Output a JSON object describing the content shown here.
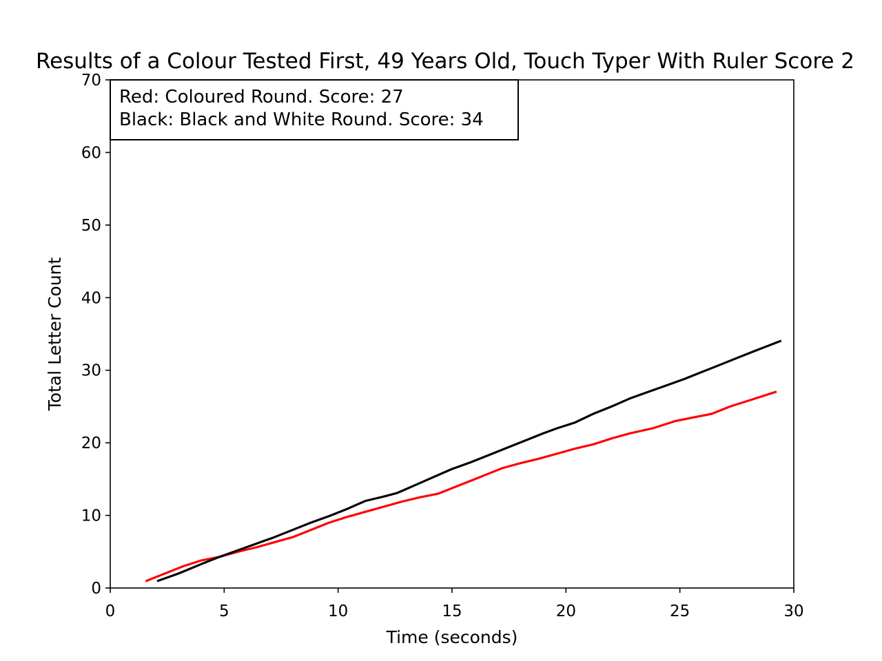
{
  "chart_data": {
    "type": "line",
    "title": "Results of a Colour Tested First, 49 Years Old, Touch Typer With Ruler Score 2",
    "xlabel": "Time (seconds)",
    "ylabel": "Total Letter Count",
    "xlim": [
      0,
      30
    ],
    "ylim": [
      0,
      70
    ],
    "xticks": [
      "0",
      "5",
      "10",
      "15",
      "20",
      "25",
      "30"
    ],
    "yticks": [
      "0",
      "10",
      "20",
      "30",
      "40",
      "50",
      "60",
      "70"
    ],
    "grid": false,
    "legend_box": {
      "placement": "top-left",
      "lines": [
        "Red: Coloured Round. Score: 27",
        "Black: Black and White Round. Score: 34"
      ]
    },
    "series": [
      {
        "color": "#ff0000",
        "x": [
          1.6,
          2.4,
          3.2,
          4.0,
          4.8,
          5.6,
          6.4,
          7.2,
          8.0,
          8.8,
          9.6,
          10.4,
          11.2,
          12.0,
          12.8,
          13.6,
          14.4,
          15.2,
          16.0,
          16.8,
          17.2,
          18.0,
          18.8,
          19.6,
          20.4,
          21.2,
          22.0,
          22.8,
          23.8,
          24.8,
          26.4,
          27.2,
          28.2,
          29.2
        ],
        "y": [
          1,
          2,
          3,
          3.8,
          4.3,
          5,
          5.6,
          6.3,
          7,
          8,
          9,
          9.8,
          10.5,
          11.2,
          11.9,
          12.5,
          13,
          14,
          15,
          16,
          16.5,
          17.2,
          17.8,
          18.5,
          19.2,
          19.8,
          20.6,
          21.3,
          22,
          23,
          24,
          25,
          26,
          27
        ]
      },
      {
        "color": "#000000",
        "x": [
          2.1,
          3.0,
          4.0,
          4.8,
          5.6,
          6.4,
          7.2,
          8.0,
          8.8,
          9.6,
          10.4,
          11.2,
          12.0,
          12.6,
          13.4,
          14.2,
          15.0,
          15.8,
          16.6,
          17.4,
          18.2,
          19.0,
          19.6,
          20.4,
          21.2,
          22.0,
          22.8,
          23.6,
          24.4,
          25.2,
          26.0,
          26.8,
          27.6,
          28.4,
          29.4
        ],
        "y": [
          1,
          2,
          3.3,
          4.3,
          5.2,
          6.1,
          7,
          8,
          9,
          9.9,
          10.9,
          12,
          12.6,
          13.1,
          14.2,
          15.3,
          16.4,
          17.3,
          18.3,
          19.3,
          20.3,
          21.3,
          22,
          22.8,
          24,
          25,
          26.1,
          27,
          27.9,
          28.8,
          29.8,
          30.8,
          31.8,
          32.8,
          34
        ]
      }
    ]
  }
}
